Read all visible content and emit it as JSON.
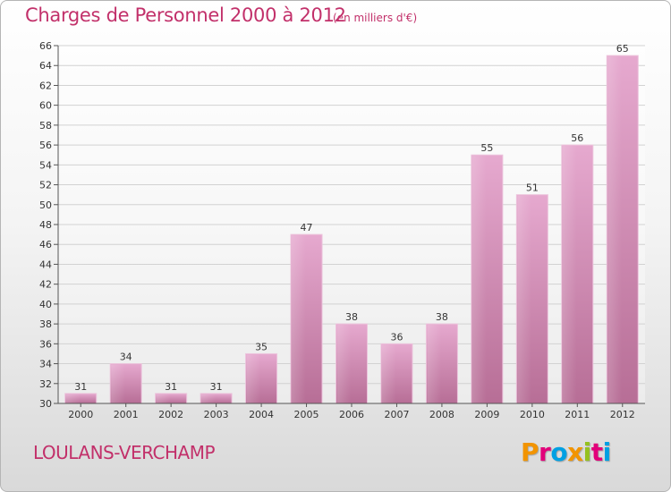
{
  "header": {
    "title": "Charges de Personnel 2000 à 2012",
    "subtitle": "(en milliers d'€)"
  },
  "footer": {
    "place": "LOULANS-VERCHAMP",
    "logo_letters": [
      "P",
      "r",
      "o",
      "x",
      "i",
      "t",
      "i"
    ]
  },
  "colors": {
    "title": "#c2306a",
    "bar_top": "#e6a9cf",
    "bar_bottom": "#b76e96",
    "logo": [
      "#f29400",
      "#e2007a",
      "#00a0e3",
      "#f29400",
      "#95c11f",
      "#e2007a",
      "#00a0e3"
    ]
  },
  "chart_data": {
    "type": "bar",
    "title": "Charges de Personnel 2000 à 2012",
    "subtitle": "(en milliers d'€)",
    "categories": [
      "2000",
      "2001",
      "2002",
      "2003",
      "2004",
      "2005",
      "2006",
      "2007",
      "2008",
      "2009",
      "2010",
      "2011",
      "2012"
    ],
    "values": [
      31,
      34,
      31,
      31,
      35,
      47,
      38,
      36,
      38,
      55,
      51,
      56,
      65
    ],
    "ylim": [
      30,
      66
    ],
    "y_ticks": [
      30,
      32,
      34,
      36,
      38,
      40,
      42,
      44,
      46,
      48,
      50,
      52,
      54,
      56,
      58,
      60,
      62,
      64,
      66
    ],
    "grid": true,
    "legend": "none",
    "data_labels": true
  }
}
